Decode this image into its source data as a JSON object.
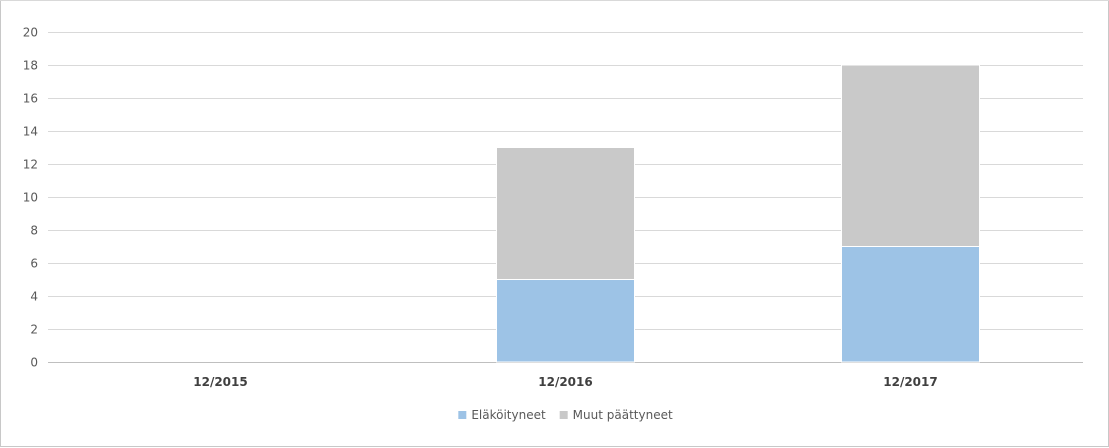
{
  "chart_data": {
    "type": "bar",
    "stacked": true,
    "categories": [
      "12/2015",
      "12/2016",
      "12/2017"
    ],
    "series": [
      {
        "name": "Eläköityneet",
        "values": [
          0,
          5,
          7
        ],
        "color": "#9dc3e6"
      },
      {
        "name": "Muut päättyneet",
        "values": [
          0,
          8,
          11
        ],
        "color": "#c9c9c9"
      }
    ],
    "yticks": [
      "0",
      "2",
      "4",
      "6",
      "8",
      "10",
      "12",
      "14",
      "16",
      "18",
      "20"
    ],
    "ylim": [
      0,
      20
    ],
    "grid": true,
    "legend_position": "bottom",
    "title": "",
    "xlabel": "",
    "ylabel": ""
  }
}
